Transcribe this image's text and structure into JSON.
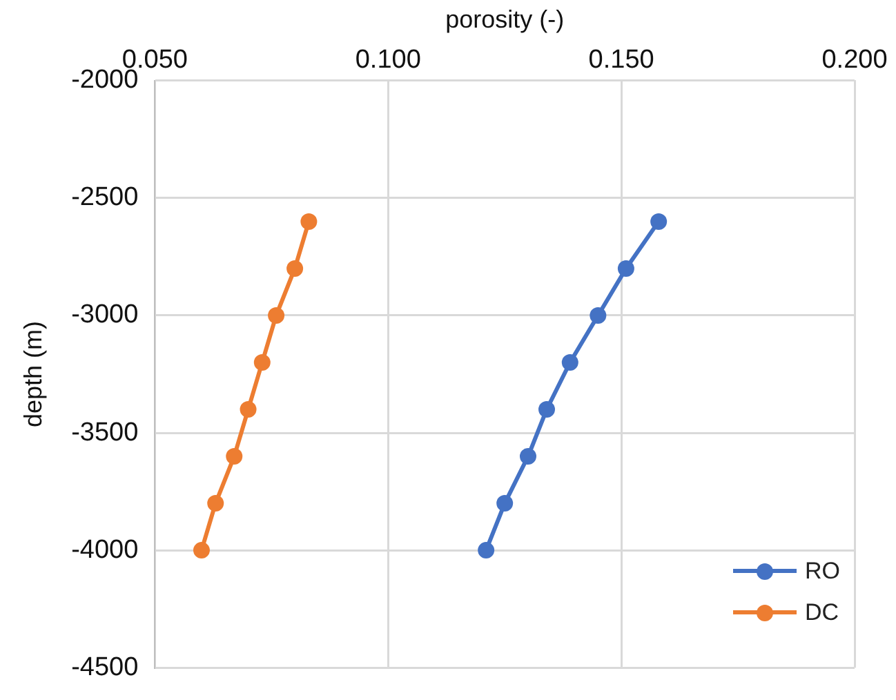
{
  "chart_data": {
    "type": "line",
    "xlabel": "porosity (-)",
    "ylabel": "depth (m)",
    "xlim": [
      0.05,
      0.2
    ],
    "xticks": [
      {
        "value": 0.05,
        "label": "0.050"
      },
      {
        "value": 0.1,
        "label": "0.100"
      },
      {
        "value": 0.15,
        "label": "0.150"
      },
      {
        "value": 0.2,
        "label": "0.200"
      }
    ],
    "ylim": [
      -4500,
      -2000
    ],
    "yticks": [
      -4500,
      -4000,
      -3500,
      -3000,
      -2500,
      -2000
    ],
    "grid": true,
    "legend": "bottom right",
    "marker": "circle",
    "line_style": "solid",
    "series": [
      {
        "name": "RO",
        "color": "#4472c4",
        "x": [
          0.158,
          0.151,
          0.145,
          0.139,
          0.134,
          0.13,
          0.125,
          0.121
        ],
        "values": [
          -2600,
          -2800,
          -3000,
          -3200,
          -3400,
          -3600,
          -3800,
          -4000
        ]
      },
      {
        "name": "DC",
        "color": "#ed7d31",
        "x": [
          0.083,
          0.08,
          0.076,
          0.073,
          0.07,
          0.067,
          0.063,
          0.06
        ],
        "values": [
          -2600,
          -2800,
          -3000,
          -3200,
          -3400,
          -3600,
          -3800,
          -4000
        ]
      }
    ]
  }
}
